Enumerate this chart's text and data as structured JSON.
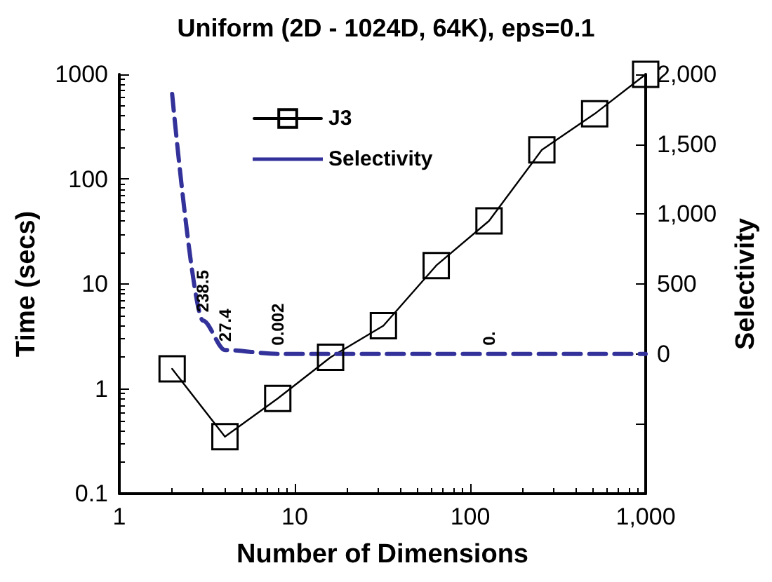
{
  "chart_data": {
    "type": "line",
    "title": "Uniform (2D - 1024D, 64K), eps=0.1",
    "xlabel": "Number of Dimensions",
    "ylabel": "Time (secs)",
    "y2label": "Selectivity",
    "x": [
      2,
      4,
      8,
      16,
      32,
      64,
      128,
      256,
      512,
      1000
    ],
    "series": [
      {
        "name": "J3",
        "color": "#000000",
        "marker": "square",
        "line_style": "solid",
        "values": [
          1.55,
          0.35,
          0.81,
          2,
          4,
          15,
          40,
          190,
          420,
          1000
        ]
      },
      {
        "name": "Selectivity",
        "color": "#33329a",
        "marker": "none",
        "line_style": "dashed",
        "axis": "y2",
        "x": [
          2,
          3,
          4,
          8,
          16,
          32,
          64,
          128,
          256,
          512,
          1000
        ],
        "values": [
          1860,
          238.5,
          27.4,
          0.002,
          0,
          0,
          0,
          0,
          0,
          0,
          0
        ],
        "value_labels": [
          null,
          "238.5",
          "27.4",
          "0.002",
          null,
          null,
          null,
          "0.",
          null,
          null,
          null
        ]
      }
    ],
    "log": "xy",
    "xlim": [
      1,
      1000
    ],
    "xticks": [
      1,
      10,
      100,
      {
        "value": 1000,
        "label": "1,000"
      }
    ],
    "ylim": [
      0.1,
      1000
    ],
    "yticks": [
      0.1,
      1,
      10,
      100,
      1000
    ],
    "y2lim": [
      -1000,
      2000
    ],
    "y2ticks": [
      {
        "value": -1000,
        "label": null
      },
      {
        "value": -500,
        "label": null
      },
      0,
      500,
      {
        "value": 1000,
        "label": "1,000"
      },
      {
        "value": 1500,
        "label": "1,500"
      },
      {
        "value": 2000,
        "label": "2,000"
      }
    ],
    "grid": false,
    "legend": "top left"
  }
}
